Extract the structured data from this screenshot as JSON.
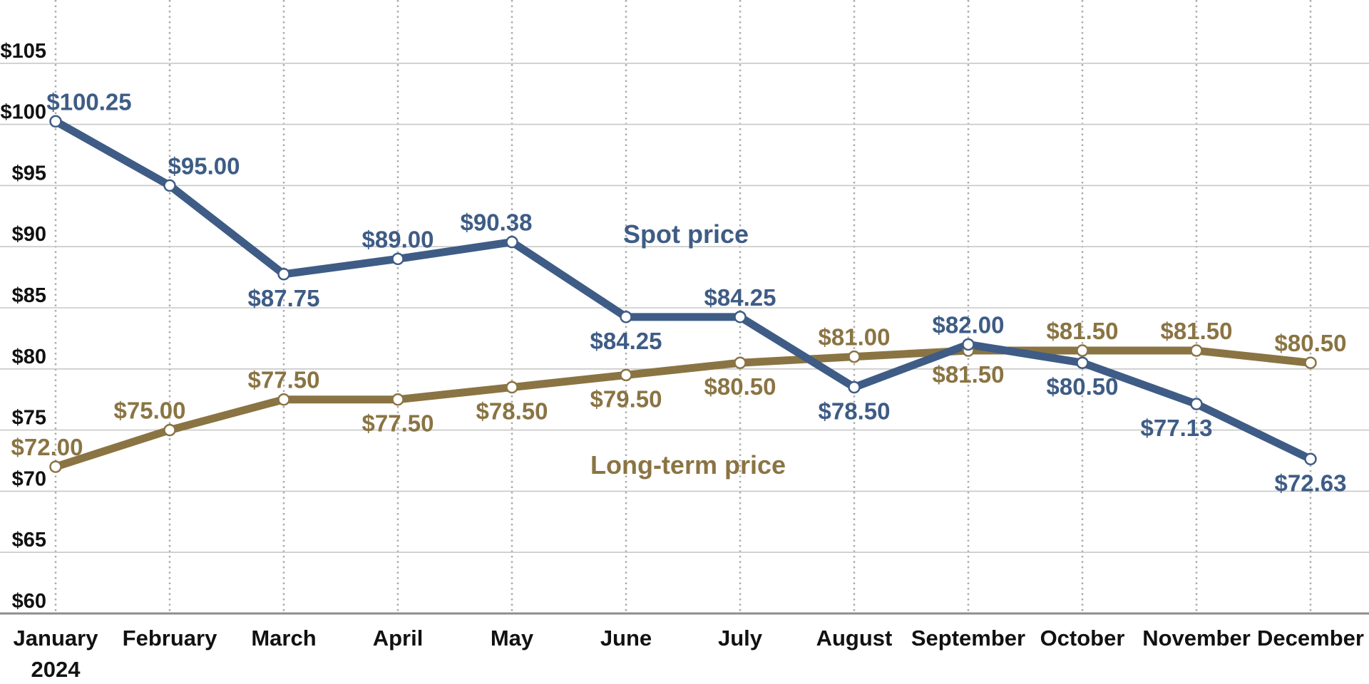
{
  "chart_data": {
    "type": "line",
    "title": "",
    "x_axis": {
      "categories": [
        "January",
        "February",
        "March",
        "April",
        "May",
        "June",
        "July",
        "August",
        "September",
        "October",
        "November",
        "December"
      ],
      "sub_label": {
        "index": 0,
        "text": "2024"
      }
    },
    "y_axis": {
      "ticks": [
        {
          "label": "$105",
          "value": 105
        },
        {
          "label": "$100",
          "value": 100
        },
        {
          "label": "$95",
          "value": 95
        },
        {
          "label": "$90",
          "value": 90
        },
        {
          "label": "$85",
          "value": 85
        },
        {
          "label": "$80",
          "value": 80
        },
        {
          "label": "$75",
          "value": 75
        },
        {
          "label": "$70",
          "value": 70
        },
        {
          "label": "$65",
          "value": 65
        },
        {
          "label": "$60",
          "value": 60
        }
      ],
      "ylim": [
        60,
        105
      ]
    },
    "grid": {
      "horizontal": "solid",
      "vertical": "dotted",
      "legend": "inline-annotations"
    },
    "series": [
      {
        "name": "Spot price",
        "color": "#3E5C85",
        "values": [
          100.25,
          95.0,
          87.75,
          89.0,
          90.38,
          84.25,
          84.25,
          78.5,
          82.0,
          80.5,
          77.13,
          72.63
        ],
        "labels": [
          "$100.25",
          "$95.00",
          "$87.75",
          "$89.00",
          "$90.38",
          "$84.25",
          "$84.25",
          "$78.50",
          "$82.00",
          "$80.50",
          "$77.13",
          "$72.63"
        ],
        "label_side": [
          "above",
          "above",
          "below",
          "above",
          "above",
          "below",
          "above",
          "below",
          "above",
          "below",
          "below",
          "below"
        ],
        "label_dx": [
          47,
          48,
          0,
          0,
          -22,
          0,
          0,
          0,
          0,
          0,
          -28,
          0
        ],
        "annotation": "Spot price"
      },
      {
        "name": "Long-term price",
        "color": "#8A7443",
        "values": [
          72.0,
          75.0,
          77.5,
          77.5,
          78.5,
          79.5,
          80.5,
          81.0,
          81.5,
          81.5,
          81.5,
          80.5
        ],
        "labels": [
          "$72.00",
          "$75.00",
          "$77.50",
          "$77.50",
          "$78.50",
          "$79.50",
          "$80.50",
          "$81.00",
          "$81.50",
          "$81.50",
          "$81.50",
          "$80.50"
        ],
        "label_side": [
          "above",
          "above",
          "above",
          "below",
          "below",
          "below",
          "below",
          "above",
          "below",
          "above",
          "above",
          "above"
        ],
        "label_dx": [
          -12,
          -28,
          0,
          0,
          0,
          0,
          0,
          0,
          0,
          0,
          0,
          0
        ],
        "annotation": "Long-term price"
      }
    ],
    "colors": {
      "gridline": "#C8C8C8",
      "axis_line": "#8C8C8C",
      "vertical_gridline": "#ABABAB",
      "tick_text": "#111111"
    }
  }
}
